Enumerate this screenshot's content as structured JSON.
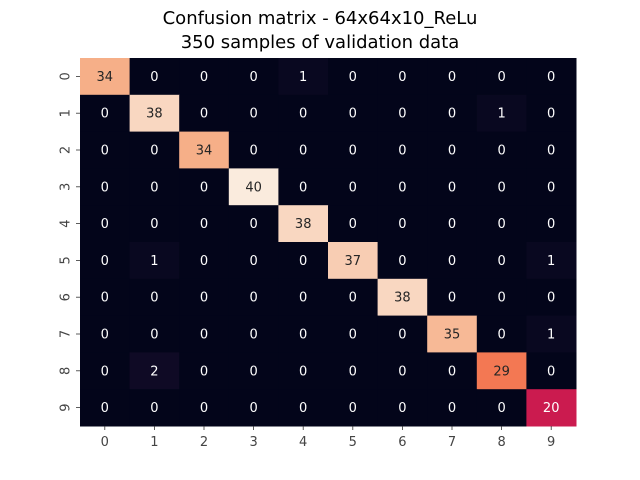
{
  "chart_data": {
    "type": "heatmap",
    "title": "Confusion matrix - 64x64x10_ReLu",
    "subtitle": "350 samples of validation data",
    "xlabel": "",
    "ylabel": "",
    "x_categories": [
      "0",
      "1",
      "2",
      "3",
      "4",
      "5",
      "6",
      "7",
      "8",
      "9"
    ],
    "y_categories": [
      "0",
      "1",
      "2",
      "3",
      "4",
      "5",
      "6",
      "7",
      "8",
      "9"
    ],
    "values": [
      [
        34,
        0,
        0,
        0,
        1,
        0,
        0,
        0,
        0,
        0
      ],
      [
        0,
        38,
        0,
        0,
        0,
        0,
        0,
        0,
        1,
        0
      ],
      [
        0,
        0,
        34,
        0,
        0,
        0,
        0,
        0,
        0,
        0
      ],
      [
        0,
        0,
        0,
        40,
        0,
        0,
        0,
        0,
        0,
        0
      ],
      [
        0,
        0,
        0,
        0,
        38,
        0,
        0,
        0,
        0,
        0
      ],
      [
        0,
        1,
        0,
        0,
        0,
        37,
        0,
        0,
        0,
        1
      ],
      [
        0,
        0,
        0,
        0,
        0,
        0,
        38,
        0,
        0,
        0
      ],
      [
        0,
        0,
        0,
        0,
        0,
        0,
        0,
        35,
        0,
        1
      ],
      [
        0,
        2,
        0,
        0,
        0,
        0,
        0,
        0,
        29,
        0
      ],
      [
        0,
        0,
        0,
        0,
        0,
        0,
        0,
        0,
        0,
        20
      ]
    ],
    "colormap": "rocket",
    "colorbar": false,
    "grid": false
  }
}
